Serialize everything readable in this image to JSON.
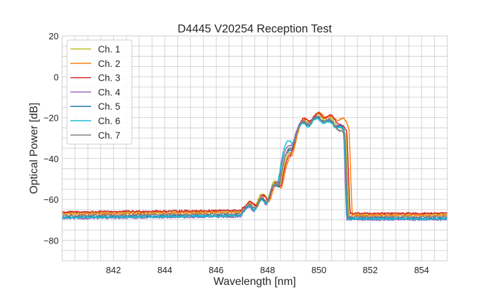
{
  "chart_data": {
    "type": "line",
    "title": "D4445 V20254 Reception Test",
    "xlabel": "Wavelength [nm]",
    "ylabel": "Optical Power [dB]",
    "xlim": [
      840,
      855
    ],
    "ylim": [
      -90,
      20
    ],
    "xticks": [
      842,
      844,
      846,
      848,
      850,
      852,
      854
    ],
    "xtick_labels": [
      "842",
      "844",
      "846",
      "848",
      "850",
      "852",
      "854"
    ],
    "yticks": [
      20,
      0,
      -20,
      -40,
      -60,
      -80
    ],
    "ytick_labels": [
      "20",
      "0",
      "−20",
      "−40",
      "−60",
      "−80"
    ],
    "grid": true,
    "minor_grid_step_x": 0.5,
    "minor_grid_step_y": 5,
    "legend_position": "top-left",
    "series": [
      {
        "name": "Ch. 1",
        "color": "#bcbd22",
        "floor": -66.6,
        "offset": 0.0,
        "peaks": [
          -63.5,
          -58.0,
          -51.0,
          -38.0,
          -21.5,
          -18.5,
          -20.0,
          -25.5
        ],
        "edge": 851.05
      },
      {
        "name": "Ch. 2",
        "color": "#ff7f0e",
        "floor": -67.2,
        "offset": 0.06,
        "peaks": [
          -64.5,
          -59.5,
          -52.5,
          -40.0,
          -21.0,
          -17.5,
          -19.5,
          -20.5
        ],
        "edge": 851.15
      },
      {
        "name": "Ch. 3",
        "color": "#d62728",
        "floor": -66.2,
        "offset": 0.03,
        "peaks": [
          -64.0,
          -59.0,
          -52.0,
          -39.0,
          -20.5,
          -18.0,
          -19.0,
          -24.0
        ],
        "edge": 851.08
      },
      {
        "name": "Ch. 4",
        "color": "#9467bd",
        "floor": -69.3,
        "offset": -0.04,
        "peaks": [
          -66.0,
          -61.0,
          -53.5,
          -34.0,
          -22.0,
          -19.5,
          -21.0,
          -24.0
        ],
        "edge": 850.98
      },
      {
        "name": "Ch. 5",
        "color": "#1f77b4",
        "floor": -68.6,
        "offset": -0.02,
        "peaks": [
          -65.5,
          -60.5,
          -53.0,
          -36.5,
          -22.5,
          -20.0,
          -21.5,
          -24.5
        ],
        "edge": 851.0
      },
      {
        "name": "Ch. 6",
        "color": "#17becf",
        "floor": -68.9,
        "offset": -0.03,
        "peaks": [
          -65.5,
          -61.0,
          -53.0,
          -31.5,
          -23.0,
          -20.5,
          -22.0,
          -25.0
        ],
        "edge": 851.0
      },
      {
        "name": "Ch. 7",
        "color": "#7f7f7f",
        "floor": -67.9,
        "offset": -0.01,
        "peaks": [
          -65.0,
          -60.0,
          -52.5,
          -35.5,
          -22.0,
          -19.5,
          -21.0,
          -27.0
        ],
        "edge": 851.02
      }
    ],
    "peak_centers": [
      847.3,
      847.8,
      848.3,
      848.85,
      849.4,
      849.93,
      850.42,
      850.88
    ]
  }
}
